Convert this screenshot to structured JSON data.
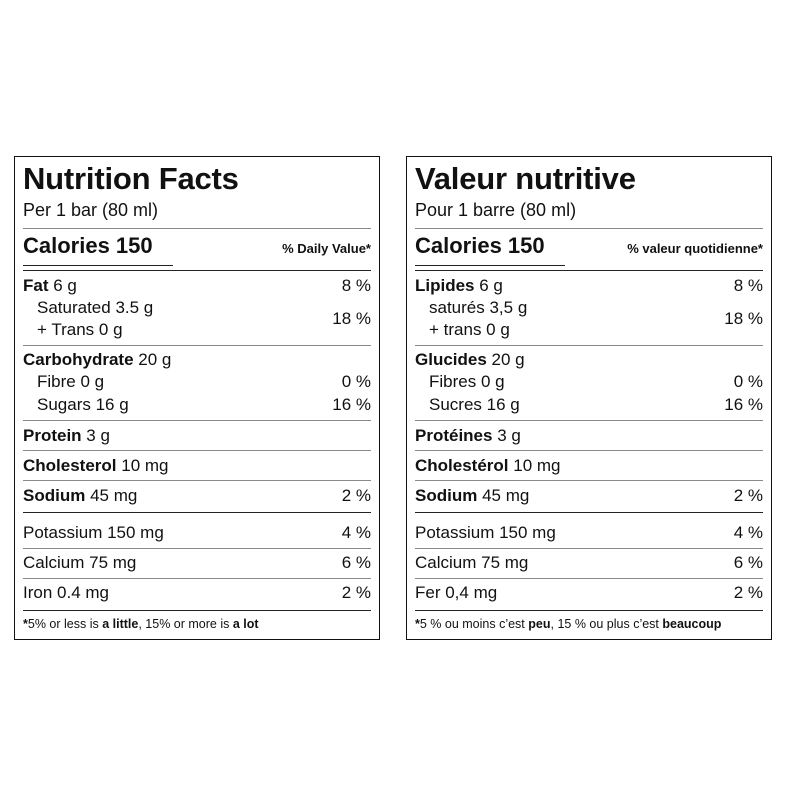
{
  "panels": [
    {
      "title": "Nutrition Facts",
      "serving": "Per 1 bar (80 ml)",
      "calories": "Calories 150",
      "dv_header": "% Daily Value*",
      "fat": {
        "label": "Fat",
        "amount": " 6 g",
        "pct": "8 %"
      },
      "saturated": "Saturated 3.5 g",
      "trans": "+ Trans 0 g",
      "sat_trans_pct": "18 %",
      "carb": {
        "label": "Carbohydrate",
        "amount": " 20 g"
      },
      "fibre": {
        "label": "Fibre 0 g",
        "pct": "0 %"
      },
      "sugars": {
        "label": "Sugars 16 g",
        "pct": "16 %"
      },
      "protein": {
        "label": "Protein",
        "amount": " 3 g"
      },
      "cholesterol": {
        "label": "Cholesterol",
        "amount": " 10 mg"
      },
      "sodium": {
        "label": "Sodium",
        "amount": " 45 mg",
        "pct": "2 %"
      },
      "potassium": {
        "label": "Potassium 150 mg",
        "pct": "4 %"
      },
      "calcium": {
        "label": "Calcium 75 mg",
        "pct": "6 %"
      },
      "iron": {
        "label": "Iron 0.4 mg",
        "pct": "2 %"
      },
      "footnote": {
        "star": "*",
        "a": "5% or less is ",
        "little": "a little",
        "b": ", 15% or more is ",
        "lot": "a lot"
      }
    },
    {
      "title": "Valeur nutritive",
      "serving": "Pour 1 barre (80 ml)",
      "calories": "Calories 150",
      "dv_header": "% valeur quotidienne*",
      "fat": {
        "label": "Lipides",
        "amount": " 6 g",
        "pct": "8 %"
      },
      "saturated": "saturés 3,5 g",
      "trans": "+ trans 0 g",
      "sat_trans_pct": "18 %",
      "carb": {
        "label": "Glucides",
        "amount": " 20 g"
      },
      "fibre": {
        "label": "Fibres 0 g",
        "pct": "0 %"
      },
      "sugars": {
        "label": "Sucres 16 g",
        "pct": "16 %"
      },
      "protein": {
        "label": "Protéines",
        "amount": " 3 g"
      },
      "cholesterol": {
        "label": "Cholestérol",
        "amount": " 10 mg"
      },
      "sodium": {
        "label": "Sodium",
        "amount": " 45 mg",
        "pct": "2 %"
      },
      "potassium": {
        "label": "Potassium 150 mg",
        "pct": "4 %"
      },
      "calcium": {
        "label": "Calcium 75 mg",
        "pct": "6 %"
      },
      "iron": {
        "label": "Fer 0,4 mg",
        "pct": "2 %"
      },
      "footnote": {
        "star": "*",
        "a": "5 % ou moins c’est ",
        "little": "peu",
        "b": ", 15 % ou plus c’est ",
        "lot": "beaucoup"
      }
    }
  ]
}
